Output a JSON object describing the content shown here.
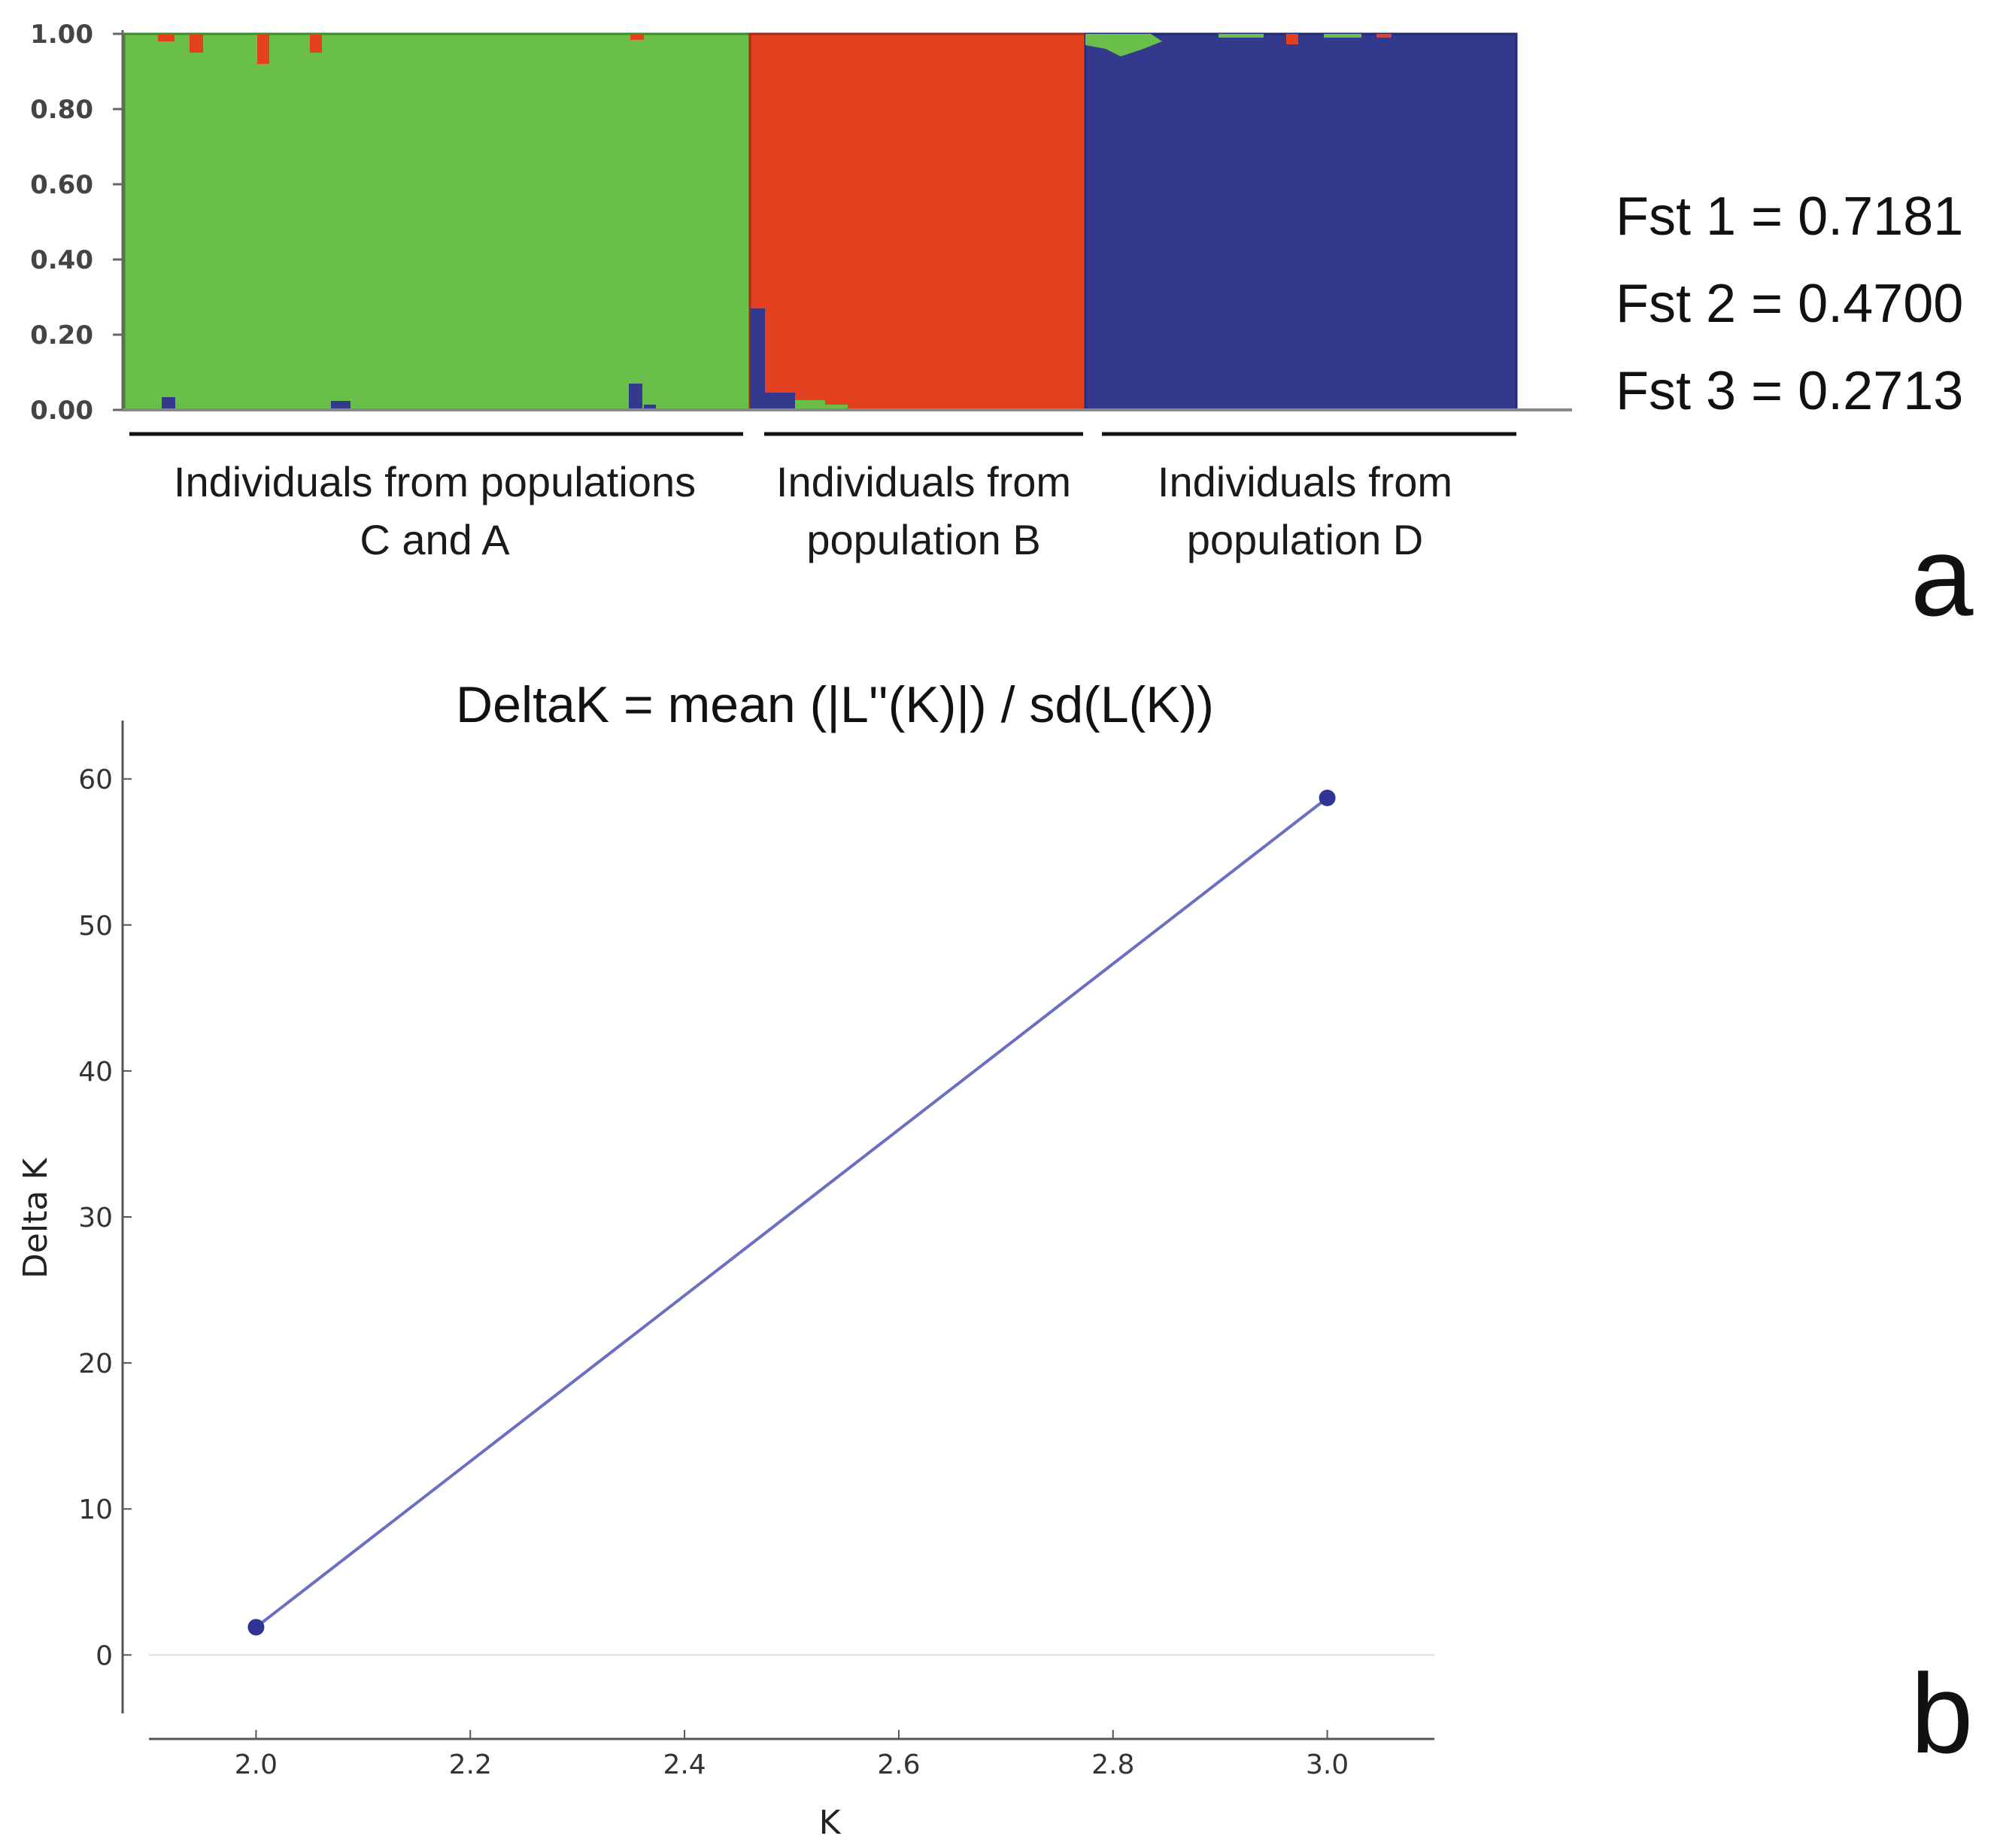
{
  "chart_data": [
    {
      "type": "bar",
      "subtype": "stacked-admixture",
      "panel_label": "a",
      "ylim": [
        0,
        1
      ],
      "yticks": [
        "0.00",
        "0.20",
        "0.40",
        "0.60",
        "0.80",
        "1.00"
      ],
      "colors": {
        "green": "#6abf4b",
        "red": "#e2401f",
        "blue": "#333a8e"
      },
      "groups": [
        {
          "label_line1": "Individuals from populations",
          "label_line2": "C and A",
          "dominant": "green",
          "individuals_fraction": 0.45
        },
        {
          "label_line1": "Individuals from",
          "label_line2": "population B",
          "dominant": "red",
          "individuals_fraction": 0.24
        },
        {
          "label_line1": "Individuals from",
          "label_line2": "population D",
          "dominant": "blue",
          "individuals_fraction": 0.31
        }
      ],
      "admixture_notes": [
        {
          "group": 0,
          "position": 0.08,
          "red": 0.0,
          "blue": 0.03
        },
        {
          "group": 0,
          "position": 0.22,
          "red": 0.08,
          "blue": 0.0
        },
        {
          "group": 0,
          "position": 0.82,
          "red": 0.01,
          "blue": 0.07
        },
        {
          "group": 1,
          "position": 0.01,
          "green": 0.0,
          "blue": 0.26
        }
      ],
      "annotations": [
        "Fst 1 = 0.7181",
        "Fst 2 = 0.4700",
        "Fst 3 = 0.2713"
      ]
    },
    {
      "type": "line",
      "panel_label": "b",
      "title": "DeltaK = mean (|L''(K)|) / sd(L(K))",
      "xlabel": "K",
      "ylabel": "Delta K",
      "xlim": [
        1.9,
        3.1
      ],
      "ylim": [
        -4,
        64
      ],
      "xticks": [
        "2.0",
        "2.2",
        "2.4",
        "2.6",
        "2.8",
        "3.0"
      ],
      "yticks": [
        "0",
        "10",
        "20",
        "30",
        "40",
        "50",
        "60"
      ],
      "line_color": "#6b6fc2",
      "marker_color": "#2e3594",
      "series": [
        {
          "x": [
            2.0,
            3.0
          ],
          "y": [
            1.9,
            58.7
          ]
        }
      ]
    }
  ]
}
